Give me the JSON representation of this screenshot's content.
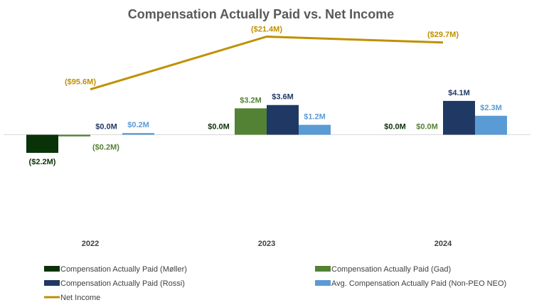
{
  "chart_data": {
    "type": "bar",
    "title": "Compensation Actually Paid vs. Net Income",
    "categories": [
      "2022",
      "2023",
      "2024"
    ],
    "series": [
      {
        "name": "Compensation Actually Paid (Møller)",
        "kind": "bar",
        "color": "#0a3208",
        "values": [
          -2.2,
          0.0,
          0.0
        ],
        "labels": [
          "($2.2M)",
          "$0.0M",
          "$0.0M"
        ]
      },
      {
        "name": "Compensation Actually Paid (Gad)",
        "kind": "bar",
        "color": "#548235",
        "values": [
          -0.2,
          3.2,
          0.0
        ],
        "labels": [
          "($0.2M)",
          "$3.2M",
          "$0.0M"
        ]
      },
      {
        "name": "Compensation Actually Paid (Rossi)",
        "kind": "bar",
        "color": "#203864",
        "values": [
          0.0,
          3.6,
          4.1
        ],
        "labels": [
          "$0.0M",
          "$3.6M",
          "$4.1M"
        ]
      },
      {
        "name": "Avg. Compensation Actually Paid (Non-PEO NEO)",
        "kind": "bar",
        "color": "#5b9bd5",
        "values": [
          0.2,
          1.2,
          2.3
        ],
        "labels": [
          "$0.2M",
          "$1.2M",
          "$2.3M"
        ]
      },
      {
        "name": "Net Income",
        "kind": "line",
        "color": "#bf9000",
        "values": [
          -95.6,
          -21.4,
          -29.7
        ],
        "labels": [
          "($95.6M)",
          "($21.4M)",
          "($29.7M)"
        ]
      }
    ],
    "legend_position": "bottom",
    "grid": false
  }
}
